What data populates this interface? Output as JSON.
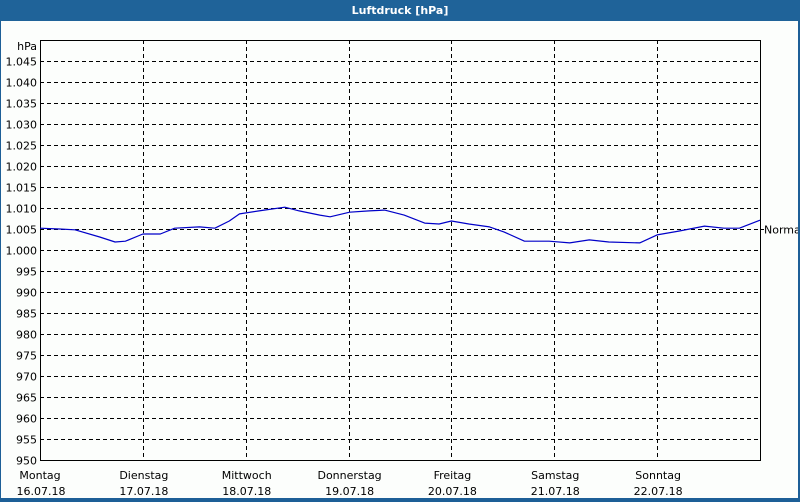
{
  "window": {
    "title": "Luftdruck [hPa]"
  },
  "chart_data": {
    "type": "line",
    "title": "Luftdruck [hPa]",
    "ylabel": "hPa",
    "xlabel": "",
    "ylim": [
      950,
      1050
    ],
    "yticks": [
      "1.045",
      "1.040",
      "1.035",
      "1.030",
      "1.025",
      "1.020",
      "1.015",
      "1.010",
      "1.005",
      "1.000",
      "995",
      "990",
      "985",
      "980",
      "975",
      "970",
      "965",
      "960",
      "955",
      "950"
    ],
    "ytick_values": [
      1045,
      1040,
      1035,
      1030,
      1025,
      1020,
      1015,
      1010,
      1005,
      1000,
      995,
      990,
      985,
      980,
      975,
      970,
      965,
      960,
      955,
      950
    ],
    "categories": [
      {
        "day": "Montag",
        "date": "16.07.18"
      },
      {
        "day": "Dienstag",
        "date": "17.07.18"
      },
      {
        "day": "Mittwoch",
        "date": "18.07.18"
      },
      {
        "day": "Donnerstag",
        "date": "19.07.18"
      },
      {
        "day": "Freitag",
        "date": "20.07.18"
      },
      {
        "day": "Samstag",
        "date": "21.07.18"
      },
      {
        "day": "Sonntag",
        "date": "22.07.18"
      }
    ],
    "grid": true,
    "reference_line": {
      "label": "Normal",
      "value": 1005.1
    },
    "series": [
      {
        "name": "Luftdruck",
        "color": "#0000c8",
        "x": [
          0.0,
          0.19,
          0.34,
          0.58,
          0.73,
          0.83,
          1.0,
          1.17,
          1.31,
          1.55,
          1.7,
          1.84,
          1.94,
          2.18,
          2.38,
          2.52,
          2.72,
          2.82,
          3.01,
          3.2,
          3.35,
          3.54,
          3.74,
          3.88,
          4.0,
          4.17,
          4.37,
          4.51,
          4.71,
          4.95,
          5.15,
          5.34,
          5.53,
          5.83,
          6.0,
          6.21,
          6.46,
          6.65,
          6.8,
          7.0
        ],
        "values": [
          1005.2,
          1005.0,
          1004.8,
          1003.1,
          1001.9,
          1002.1,
          1003.8,
          1003.8,
          1005.2,
          1005.5,
          1005.2,
          1006.9,
          1008.6,
          1009.5,
          1010.2,
          1009.3,
          1008.3,
          1007.9,
          1009.0,
          1009.3,
          1009.5,
          1008.3,
          1006.4,
          1006.2,
          1006.9,
          1006.2,
          1005.5,
          1004.3,
          1002.1,
          1002.1,
          1001.7,
          1002.4,
          1001.9,
          1001.7,
          1003.6,
          1004.5,
          1005.7,
          1005.2,
          1005.2,
          1007.1
        ]
      }
    ]
  }
}
